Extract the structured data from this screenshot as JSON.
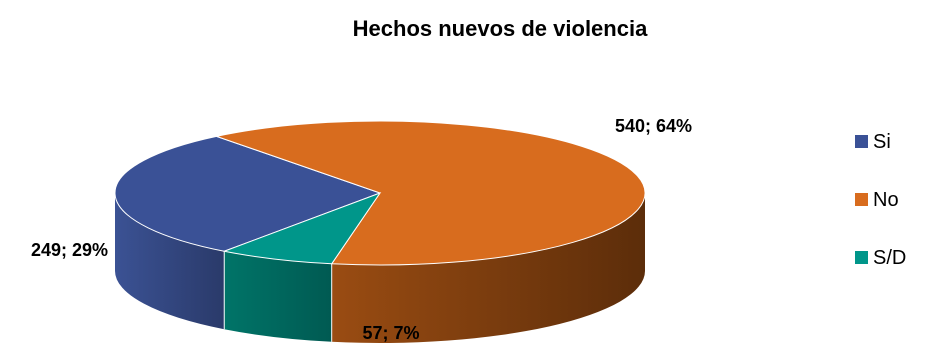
{
  "chart_data": {
    "type": "pie",
    "title": "Hechos nuevos de violencia",
    "slices": [
      {
        "label": "Si",
        "value": 249,
        "percent": 29,
        "data_label": "249; 29%",
        "color": "#3A5196"
      },
      {
        "label": "No",
        "value": 540,
        "percent": 64,
        "data_label": "540; 64%",
        "color": "#D86C1E"
      },
      {
        "label": "S/D",
        "value": 57,
        "percent": 7,
        "data_label": "57; 7%",
        "color": "#00968A"
      }
    ],
    "legend": {
      "position": "right",
      "items": [
        "Si",
        "No",
        "S/D"
      ]
    },
    "style": "3d-exploded-none"
  }
}
